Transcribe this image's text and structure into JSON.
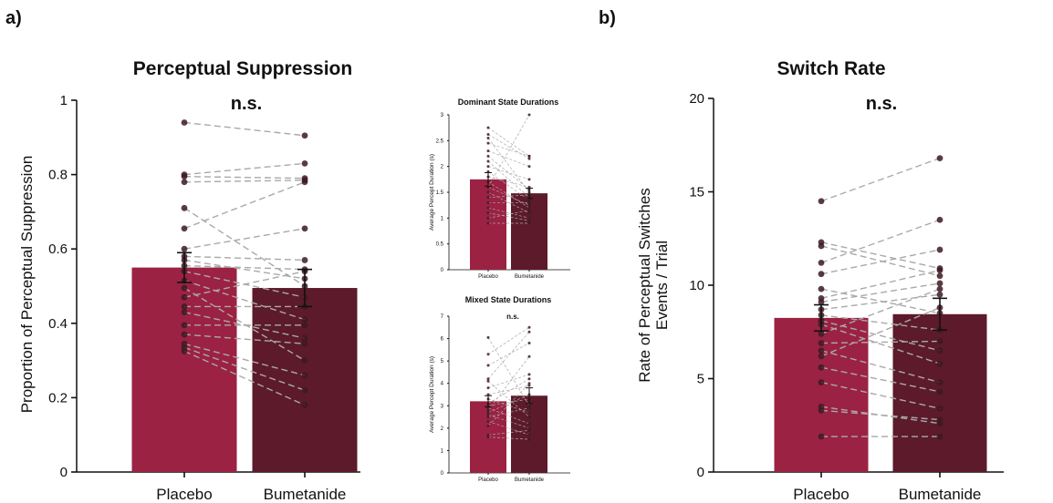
{
  "colors": {
    "placebo": "#9b2242",
    "bumetanide": "#5c1a2b",
    "dot": "#3d1a22",
    "line": "#a9a9a9"
  },
  "panel_labels": [
    "a)",
    "b)"
  ],
  "chart_data": [
    {
      "type": "bar",
      "title": "Perceptual Suppression",
      "significance": "n.s.",
      "ylabel": "Proportion of Perceptual Suppression",
      "categories": [
        "Placebo",
        "Bumetanide"
      ],
      "values": [
        0.55,
        0.495
      ],
      "errors": [
        0.04,
        0.05
      ],
      "ylim": [
        0,
        1
      ],
      "yticks": [
        "0",
        "0.2",
        "0.4",
        "0.6",
        "0.8",
        "1"
      ],
      "ytick_values": [
        0,
        0.2,
        0.4,
        0.6,
        0.8,
        1
      ],
      "paired": [
        [
          0.94,
          0.905
        ],
        [
          0.8,
          0.83
        ],
        [
          0.795,
          0.79
        ],
        [
          0.78,
          0.785
        ],
        [
          0.71,
          0.5
        ],
        [
          0.655,
          0.78
        ],
        [
          0.6,
          0.655
        ],
        [
          0.58,
          0.57
        ],
        [
          0.57,
          0.52
        ],
        [
          0.555,
          0.545
        ],
        [
          0.54,
          0.47
        ],
        [
          0.515,
          0.41
        ],
        [
          0.495,
          0.3
        ],
        [
          0.47,
          0.54
        ],
        [
          0.445,
          0.445
        ],
        [
          0.43,
          0.36
        ],
        [
          0.395,
          0.395
        ],
        [
          0.37,
          0.345
        ],
        [
          0.345,
          0.26
        ],
        [
          0.335,
          0.22
        ],
        [
          0.325,
          0.18
        ]
      ]
    },
    {
      "type": "bar",
      "title": "Dominant State Durations",
      "significance": "",
      "ylabel": "Average Percept Duration (s)",
      "categories": [
        "Placebo",
        "Bumetanide"
      ],
      "values": [
        1.75,
        1.48
      ],
      "errors": [
        0.13,
        0.1
      ],
      "ylim": [
        0,
        3
      ],
      "yticks": [
        "0",
        "0.5",
        "1",
        "1.5",
        "2",
        "2.5",
        "3"
      ],
      "ytick_values": [
        0,
        0.5,
        1,
        1.5,
        2,
        2.5,
        3
      ],
      "paired": [
        [
          2.75,
          2.2
        ],
        [
          2.62,
          2.15
        ],
        [
          2.55,
          1.5
        ],
        [
          2.45,
          2.2
        ],
        [
          2.3,
          2.0
        ],
        [
          2.2,
          1.55
        ],
        [
          2.1,
          1.4
        ],
        [
          2.0,
          1.75
        ],
        [
          1.9,
          1.35
        ],
        [
          1.8,
          1.6
        ],
        [
          1.7,
          1.2
        ],
        [
          1.6,
          1.25
        ],
        [
          1.5,
          1.1
        ],
        [
          1.4,
          1.45
        ],
        [
          1.3,
          1.3
        ],
        [
          1.2,
          1.0
        ],
        [
          1.1,
          0.95
        ],
        [
          1.0,
          1.15
        ],
        [
          0.9,
          0.9
        ],
        [
          1.6,
          3.0
        ]
      ]
    },
    {
      "type": "bar",
      "title": "Mixed State Durations",
      "significance": "n.s.",
      "ylabel": "Average Percept Duration (s)",
      "categories": [
        "Placebo",
        "Bumetanide"
      ],
      "values": [
        3.2,
        3.45
      ],
      "errors": [
        0.25,
        0.35
      ],
      "ylim": [
        0,
        7
      ],
      "yticks": [
        "0",
        "1",
        "2",
        "3",
        "4",
        "5",
        "6",
        "7"
      ],
      "ytick_values": [
        0,
        1,
        2,
        3,
        4,
        5,
        6,
        7
      ],
      "paired": [
        [
          6.05,
          3.0
        ],
        [
          5.3,
          6.5
        ],
        [
          4.8,
          5.8
        ],
        [
          4.2,
          6.3
        ],
        [
          4.1,
          2.5
        ],
        [
          3.8,
          4.4
        ],
        [
          3.5,
          3.9
        ],
        [
          3.3,
          2.7
        ],
        [
          3.1,
          4.2
        ],
        [
          3.0,
          3.3
        ],
        [
          2.9,
          2.2
        ],
        [
          2.8,
          5.2
        ],
        [
          2.7,
          3.5
        ],
        [
          2.6,
          2.0
        ],
        [
          2.5,
          2.9
        ],
        [
          2.3,
          1.7
        ],
        [
          2.1,
          4.0
        ],
        [
          1.7,
          1.9
        ],
        [
          1.6,
          1.5
        ]
      ]
    },
    {
      "type": "bar",
      "title": "Switch Rate",
      "significance": "n.s.",
      "ylabel": "Rate of Perceptual Switches",
      "ylabel2": "Events / Trial",
      "categories": [
        "Placebo",
        "Bumetanide"
      ],
      "values": [
        8.25,
        8.45
      ],
      "errors": [
        0.7,
        0.85
      ],
      "ylim": [
        0,
        20
      ],
      "yticks": [
        "0",
        "5",
        "10",
        "15",
        "20"
      ],
      "ytick_values": [
        0,
        5,
        10,
        15,
        20
      ],
      "paired": [
        [
          14.5,
          16.8
        ],
        [
          12.3,
          10.9
        ],
        [
          12.1,
          10.5
        ],
        [
          11.2,
          13.5
        ],
        [
          10.6,
          11.9
        ],
        [
          9.8,
          8.5
        ],
        [
          9.3,
          10.8
        ],
        [
          9.1,
          10.1
        ],
        [
          8.7,
          9.5
        ],
        [
          8.4,
          7.6
        ],
        [
          7.9,
          5.8
        ],
        [
          7.4,
          9.8
        ],
        [
          6.9,
          7.0
        ],
        [
          6.5,
          4.8
        ],
        [
          6.2,
          8.8
        ],
        [
          5.6,
          4.3
        ],
        [
          4.8,
          3.4
        ],
        [
          3.5,
          2.6
        ],
        [
          3.3,
          2.8
        ],
        [
          1.9,
          1.9
        ],
        [
          8.1,
          6.5
        ]
      ]
    }
  ]
}
